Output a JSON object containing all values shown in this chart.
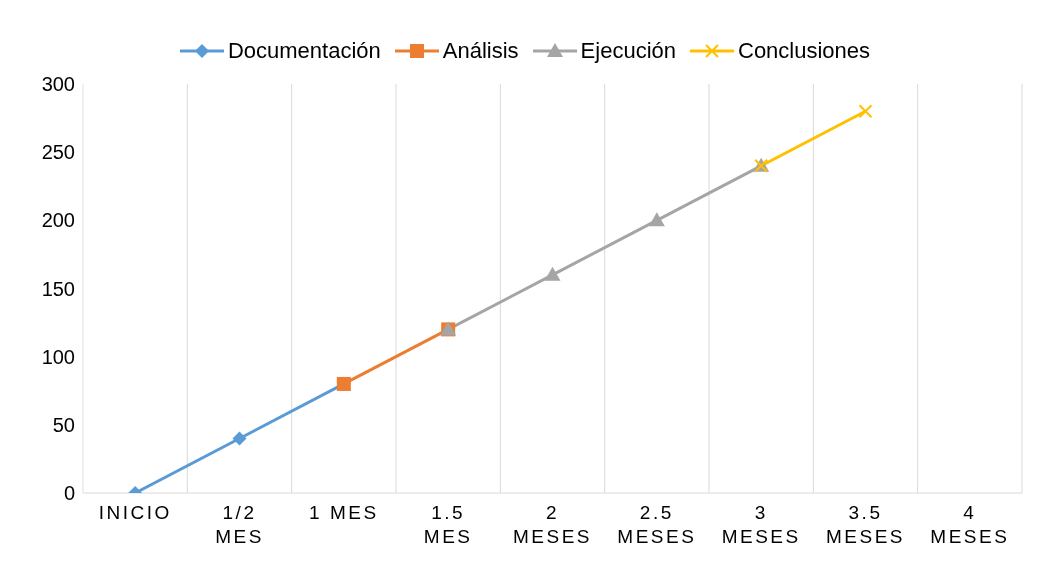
{
  "chart_data": {
    "type": "line",
    "categories": [
      "INICIO",
      "1/2 MES",
      "1 MES",
      "1.5 MES",
      "2 MESES",
      "2.5 MESES",
      "3 MESES",
      "3.5 MESES",
      "4 MESES"
    ],
    "series": [
      {
        "name": "Documentación",
        "color": "#5b9bd5",
        "marker": "diamond",
        "values": [
          0,
          40,
          80,
          null,
          null,
          null,
          null,
          null,
          null
        ]
      },
      {
        "name": "Análisis",
        "color": "#ed7d31",
        "marker": "square",
        "values": [
          null,
          null,
          80,
          120,
          null,
          null,
          null,
          null,
          null
        ]
      },
      {
        "name": "Ejecución",
        "color": "#a5a5a5",
        "marker": "triangle",
        "values": [
          null,
          null,
          null,
          120,
          160,
          200,
          240,
          null,
          null
        ]
      },
      {
        "name": "Conclusiones",
        "color": "#ffc000",
        "marker": "cross",
        "values": [
          null,
          null,
          null,
          null,
          null,
          null,
          240,
          280,
          null
        ]
      }
    ],
    "ylim": [
      0,
      300
    ],
    "yticks": [
      0,
      50,
      100,
      150,
      200,
      250,
      300
    ],
    "grid": "x",
    "legend": "top",
    "line_style": "solid"
  }
}
